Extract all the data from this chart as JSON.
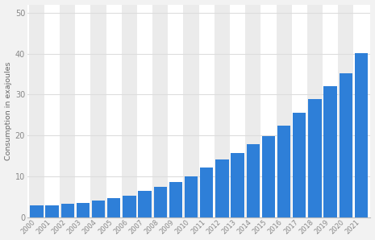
{
  "years": [
    "2000",
    "2001",
    "2002",
    "2003",
    "2004",
    "2005",
    "2006",
    "2007",
    "2008",
    "2009",
    "2010",
    "2011",
    "2012",
    "2013",
    "2014",
    "2015",
    "2016",
    "2017",
    "2018",
    "2019",
    "2020",
    "2021"
  ],
  "values": [
    3.0,
    3.0,
    3.2,
    3.5,
    4.0,
    4.7,
    5.3,
    6.5,
    7.5,
    8.7,
    9.9,
    12.2,
    14.1,
    15.7,
    17.8,
    19.9,
    22.3,
    25.5,
    28.8,
    32.1,
    35.2,
    40.2
  ],
  "bar_color": "#2e7fd8",
  "ylabel": "Consumption in exajoules",
  "ylim": [
    0,
    52
  ],
  "yticks": [
    0,
    10,
    20,
    30,
    40,
    50
  ],
  "background_color": "#f2f2f2",
  "plot_bg_color": "#ffffff",
  "grid_color": "#dddddd",
  "bar_width": 0.85
}
